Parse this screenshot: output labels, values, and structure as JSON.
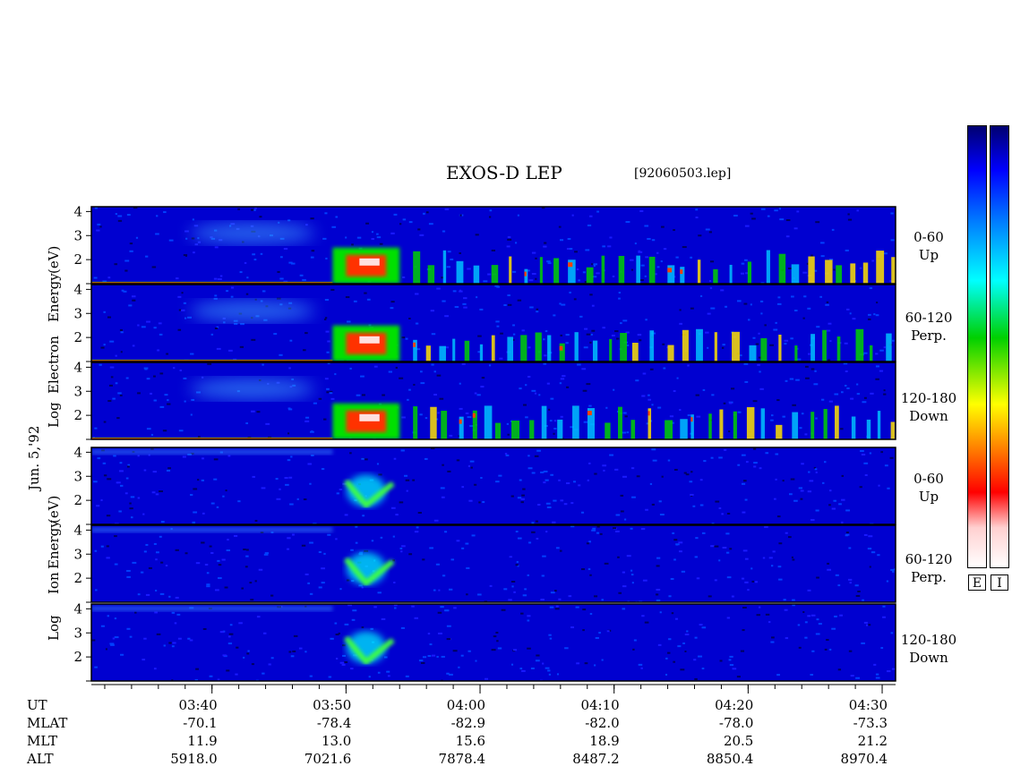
{
  "title": "EXOS-D LEP",
  "file_name": "[92060503.lep]",
  "date_label": "Jun. 5,'92",
  "colorbar_labels": [
    "E",
    "I"
  ],
  "chart_data": {
    "type": "heatmap",
    "time_axis": {
      "range": [
        "03:31",
        "04:31"
      ],
      "major_ticks": [
        "03:40",
        "03:50",
        "04:00",
        "04:10",
        "04:20",
        "04:30"
      ],
      "minor_tick_interval_min": 2
    },
    "ephemeris": [
      {
        "label": "UT",
        "values": [
          "03:40",
          "03:50",
          "04:00",
          "04:10",
          "04:20",
          "04:30"
        ]
      },
      {
        "label": "MLAT",
        "values": [
          "-70.1",
          "-78.4",
          "-82.9",
          "-82.0",
          "-78.0",
          "-73.3"
        ]
      },
      {
        "label": "MLT",
        "values": [
          "11.9",
          "13.0",
          "15.6",
          "18.9",
          "20.5",
          "21.2"
        ]
      },
      {
        "label": "ALT",
        "values": [
          "5918.0",
          "7021.6",
          "7878.4",
          "8487.2",
          "8850.4",
          "8970.4"
        ]
      }
    ],
    "groups": [
      {
        "species": "Electron",
        "ylabel_words": [
          "Log",
          "Electron",
          "Energy",
          "(eV)"
        ],
        "panels": [
          {
            "pitch_angle": "0-60",
            "direction": "Up"
          },
          {
            "pitch_angle": "60-120",
            "direction": "Perp."
          },
          {
            "pitch_angle": "120-180",
            "direction": "Down"
          }
        ]
      },
      {
        "species": "Ion",
        "ylabel_words": [
          "Log",
          "Ion",
          "Energy",
          "(eV)"
        ],
        "panels": [
          {
            "pitch_angle": "0-60",
            "direction": "Up"
          },
          {
            "pitch_angle": "60-120",
            "direction": "Perp."
          },
          {
            "pitch_angle": "120-180",
            "direction": "Down"
          }
        ]
      }
    ],
    "y_axis": {
      "scale": "log10",
      "range": [
        1,
        4.2
      ],
      "ticks": [
        "2",
        "3",
        "4"
      ]
    },
    "colormap": [
      "#ffffff",
      "#ff0000",
      "#ffa500",
      "#ffff00",
      "#00cc00",
      "#00ffff",
      "#0080ff",
      "#0000ff",
      "#000080"
    ]
  },
  "colors": {
    "background_low": "#0000c8",
    "mid": "#00e0ff",
    "high": "#ff0000",
    "peak": "#ffffff"
  }
}
